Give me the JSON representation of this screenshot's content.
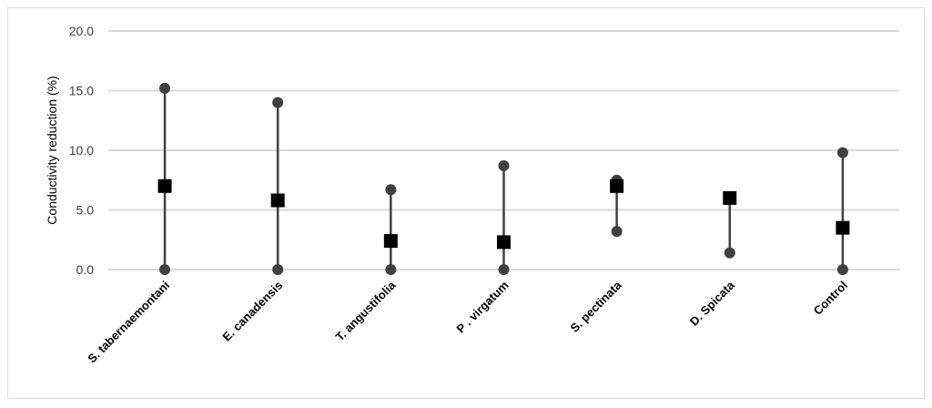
{
  "chart_data": {
    "type": "scatter",
    "subtype": "high-low-mean",
    "title": "",
    "xlabel": "",
    "ylabel": "Conductivity  reduction  (%)",
    "ylim": [
      0,
      20
    ],
    "yticks": [
      "0.0",
      "5.0",
      "10.0",
      "15.0",
      "20.0"
    ],
    "grid": true,
    "categories": [
      "S. tabernaemontani",
      "E. canadensis",
      "T. angustifolia",
      "P . virgatum",
      "S. pectinata",
      "D. Spicata",
      "Control"
    ],
    "series": [
      {
        "role": "max",
        "marker": "circle",
        "values": [
          15.2,
          14.0,
          6.7,
          8.7,
          7.5,
          6.0,
          9.8
        ]
      },
      {
        "role": "min",
        "marker": "circle",
        "values": [
          0.0,
          0.0,
          0.0,
          0.0,
          3.2,
          1.4,
          0.0
        ]
      },
      {
        "role": "mean",
        "marker": "square",
        "values": [
          7.0,
          5.8,
          2.4,
          2.3,
          7.0,
          6.0,
          3.5
        ]
      }
    ],
    "colors": {
      "range": "#404040",
      "mean": "#000000",
      "grid": "#d9d9d9"
    }
  }
}
